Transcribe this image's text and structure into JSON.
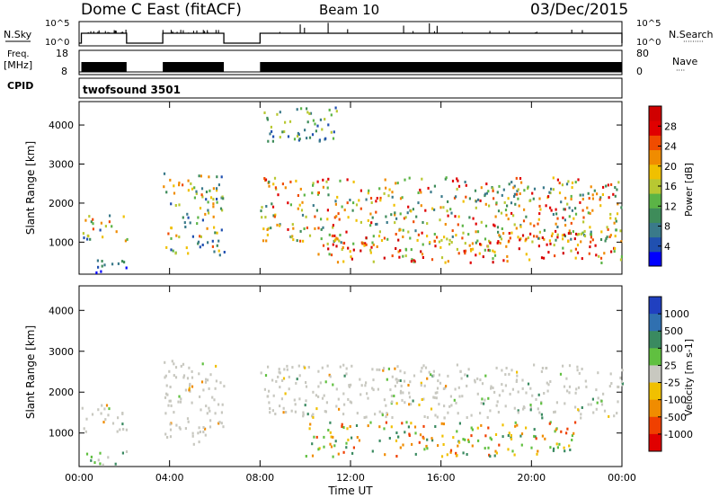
{
  "title": {
    "station": "Dome C East (fitACF)",
    "beam": "Beam 10",
    "date": "03/Dec/2015"
  },
  "header_panels": {
    "nsky": {
      "left_label": "N.Sky",
      "ticks_left": [
        "10^5",
        "10^0"
      ],
      "ticks_right": [
        "10^5",
        "10^0"
      ],
      "right_label": "N.Search",
      "right_marker": "·········"
    },
    "freq": {
      "left_label_1": "Freq.",
      "left_label_2": "[MHz]",
      "ticks_left": [
        "18",
        "8"
      ],
      "ticks_right": [
        "80",
        "0"
      ],
      "right_label": "Nave",
      "right_marker": "····"
    },
    "cpid": {
      "label": "CPID",
      "value": "twofsound 3501"
    }
  },
  "chart_data": [
    {
      "type": "heatmap",
      "quantity": "Power",
      "ylabel": "Slant Range [km]",
      "xlabel": "Time UT",
      "x_ticks": [
        "00:00",
        "04:00",
        "08:00",
        "12:00",
        "16:00",
        "20:00",
        "00:00"
      ],
      "x_range_hours": [
        0,
        24
      ],
      "y_ticks": [
        "1000",
        "2000",
        "3000",
        "4000"
      ],
      "y_range_km": [
        180,
        4600
      ],
      "colorbar": {
        "title": "Power [dB]",
        "labels": [
          "4",
          "8",
          "12",
          "16",
          "20",
          "24",
          "28"
        ],
        "colors": [
          "#0000ff",
          "#2050b0",
          "#3a7a8a",
          "#3e8c5a",
          "#5bb446",
          "#b8c832",
          "#f0c000",
          "#f08c00",
          "#f04c00",
          "#e00000",
          "#d00000"
        ]
      },
      "data_gaps_hours": [
        [
          2.1,
          3.7
        ],
        [
          6.4,
          8.0
        ]
      ],
      "echo_regions": [
        {
          "t": [
            0.1,
            2.1
          ],
          "r": [
            1050,
            1750
          ],
          "level": "medium"
        },
        {
          "t": [
            0.1,
            2.1
          ],
          "r": [
            250,
            600
          ],
          "level": "low"
        },
        {
          "t": [
            3.7,
            6.4
          ],
          "r": [
            700,
            2800
          ],
          "level": "medium"
        },
        {
          "t": [
            8.0,
            24.0
          ],
          "r": [
            1000,
            2700
          ],
          "level": "medium-high"
        },
        {
          "t": [
            8.0,
            11.5
          ],
          "r": [
            3600,
            4500
          ],
          "level": "low-medium"
        },
        {
          "t": [
            10.5,
            24.0
          ],
          "r": [
            500,
            1300
          ],
          "level": "high"
        }
      ]
    },
    {
      "type": "heatmap",
      "quantity": "Velocity",
      "ylabel": "Slant Range [km]",
      "xlabel": "Time UT",
      "x_ticks": [
        "00:00",
        "04:00",
        "08:00",
        "12:00",
        "16:00",
        "20:00",
        "00:00"
      ],
      "x_range_hours": [
        0,
        24
      ],
      "y_ticks": [
        "1000",
        "2000",
        "3000",
        "4000"
      ],
      "y_range_km": [
        180,
        4600
      ],
      "colorbar": {
        "title": "Velocity [m s-1]",
        "labels": [
          "1000",
          "500",
          "100",
          "25",
          "-25",
          "-100",
          "-500",
          "-1000"
        ],
        "colors": [
          "#2040c0",
          "#3070b0",
          "#3a8a60",
          "#60c040",
          "#c8c8c0",
          "#f0c000",
          "#f08c00",
          "#f04000",
          "#e00000"
        ]
      },
      "data_gaps_hours": [
        [
          2.1,
          3.7
        ],
        [
          6.4,
          8.0
        ]
      ],
      "echo_regions": [
        {
          "t": [
            0.1,
            2.1
          ],
          "r": [
            1050,
            1750
          ],
          "velocity": "near zero (gray)"
        },
        {
          "t": [
            0.1,
            2.1
          ],
          "r": [
            250,
            600
          ],
          "velocity": "positive (green)"
        },
        {
          "t": [
            3.7,
            6.4
          ],
          "r": [
            700,
            2800
          ],
          "velocity": "near zero"
        },
        {
          "t": [
            8.0,
            24.0
          ],
          "r": [
            1400,
            2700
          ],
          "velocity": "near zero (gray)"
        },
        {
          "t": [
            10.0,
            22.0
          ],
          "r": [
            450,
            1300
          ],
          "velocity": "mixed (green/orange)"
        }
      ]
    }
  ]
}
